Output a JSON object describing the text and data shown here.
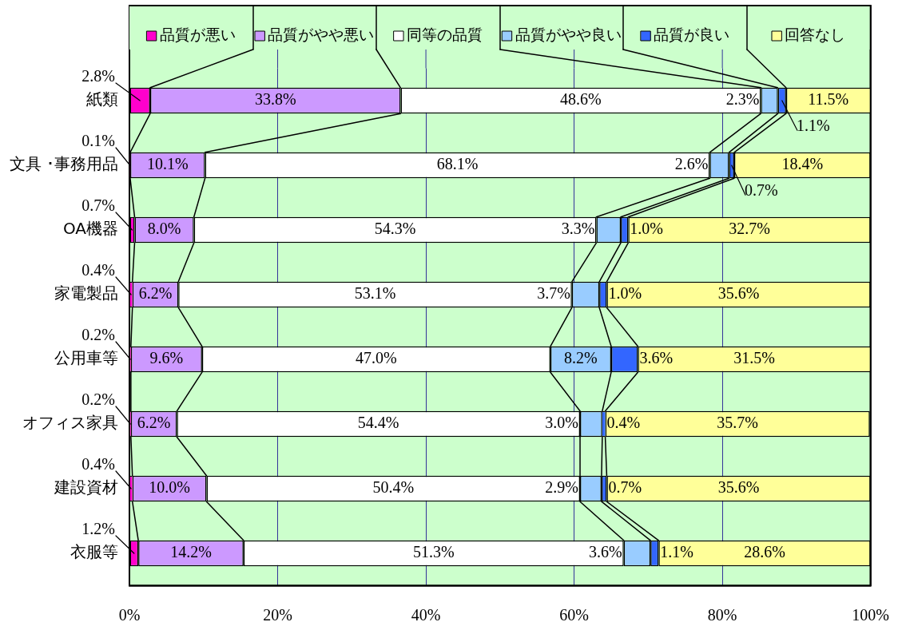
{
  "chart_data": {
    "type": "bar",
    "orientation": "horizontal",
    "stacked": true,
    "categories": [
      "紙類",
      "文具 ･事務用品",
      "OA機器",
      "家電製品",
      "公用車等",
      "オフィス家具",
      "建設資材",
      "衣服等"
    ],
    "series": [
      {
        "name": "品質が悪い",
        "color": "#ff00cc",
        "values": [
          2.8,
          0.1,
          0.7,
          0.4,
          0.2,
          0.2,
          0.4,
          1.2
        ],
        "value_labels": [
          "2.8%",
          "0.1%",
          "0.7%",
          "0.4%",
          "0.2%",
          "0.2%",
          "0.4%",
          "1.2%"
        ]
      },
      {
        "name": "品質がやや悪い",
        "color": "#cc99ff",
        "values": [
          33.8,
          10.1,
          8.0,
          6.2,
          9.6,
          6.2,
          10.0,
          14.2
        ],
        "value_labels": [
          "33.8%",
          "10.1%",
          "8.0%",
          "6.2%",
          "9.6%",
          "6.2%",
          "10.0%",
          "14.2%"
        ]
      },
      {
        "name": "同等の品質",
        "color": "#ffffff",
        "values": [
          48.6,
          68.1,
          54.3,
          53.1,
          47.0,
          54.4,
          50.4,
          51.3
        ],
        "value_labels": [
          "48.6%",
          "68.1%",
          "54.3%",
          "53.1%",
          "47.0%",
          "54.4%",
          "50.4%",
          "51.3%"
        ]
      },
      {
        "name": "品質がやや良い",
        "color": "#99ccff",
        "values": [
          2.3,
          2.6,
          3.3,
          3.7,
          8.2,
          3.0,
          2.9,
          3.6
        ],
        "value_labels": [
          "2.3%",
          "2.6%",
          "3.3%",
          "3.7%",
          "8.2%",
          "3.0%",
          "2.9%",
          "3.6%"
        ]
      },
      {
        "name": "品質が良い",
        "color": "#3366ff",
        "values": [
          1.1,
          0.7,
          1.0,
          1.0,
          3.6,
          0.4,
          0.7,
          1.1
        ],
        "value_labels": [
          "1.1%",
          "0.7%",
          "1.0%",
          "1.0%",
          "3.6%",
          "0.4%",
          "0.7%",
          "1.1%"
        ]
      },
      {
        "name": "回答なし",
        "color": "#ffff99",
        "values": [
          11.5,
          18.4,
          32.7,
          35.6,
          31.5,
          35.7,
          35.6,
          28.6
        ],
        "value_labels": [
          "11.5%",
          "18.4%",
          "32.7%",
          "35.6%",
          "31.5%",
          "35.7%",
          "35.6%",
          "28.6%"
        ]
      }
    ],
    "xlim": [
      0,
      100
    ],
    "xticks": [
      {
        "value": 0,
        "label": "0%"
      },
      {
        "value": 20,
        "label": "20%"
      },
      {
        "value": 40,
        "label": "40%"
      },
      {
        "value": 60,
        "label": "60%"
      },
      {
        "value": 80,
        "label": "80%"
      },
      {
        "value": 100,
        "label": "100%"
      }
    ],
    "grid": "x",
    "legend": "top"
  }
}
